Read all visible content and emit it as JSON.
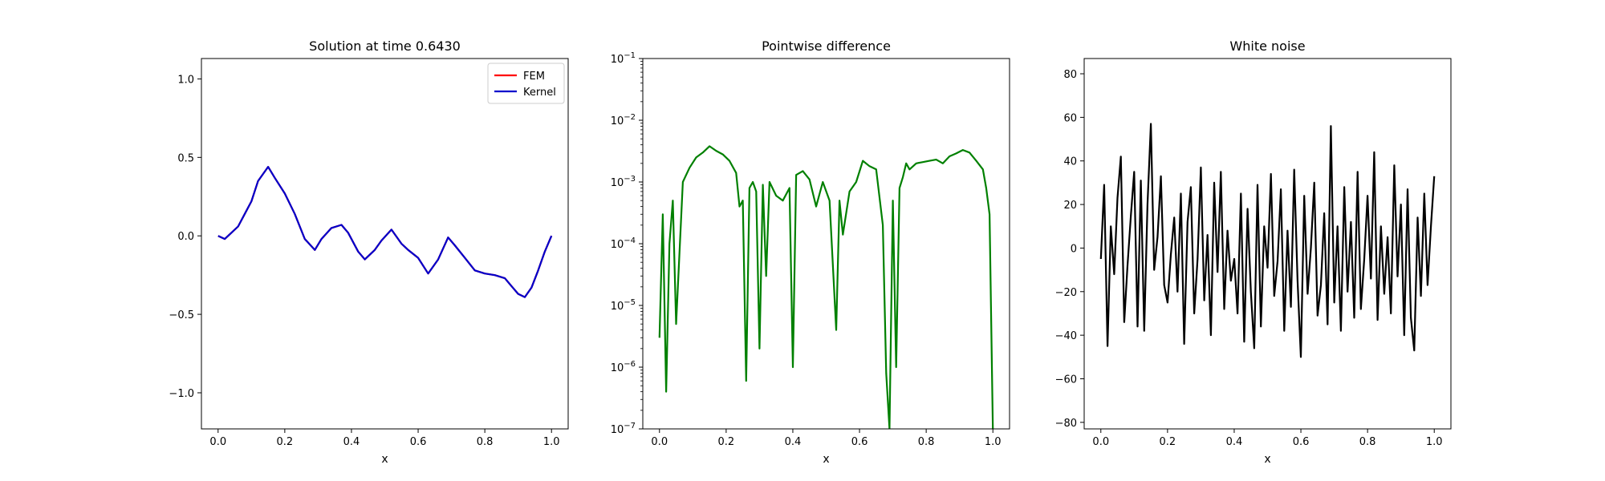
{
  "chart_data": [
    {
      "type": "line",
      "title": "Solution at time 0.6430",
      "xlabel": "x",
      "ylabel": "",
      "xlim": [
        -0.05,
        1.05
      ],
      "ylim": [
        -1.23,
        1.13
      ],
      "xticks": [
        0.0,
        0.2,
        0.4,
        0.6,
        0.8,
        1.0
      ],
      "xtick_labels": [
        "0.0",
        "0.2",
        "0.4",
        "0.6",
        "0.8",
        "1.0"
      ],
      "yticks": [
        1.0,
        0.5,
        0.0,
        -0.5,
        -1.0
      ],
      "ytick_labels": [
        "1.0",
        "0.5",
        "0.0",
        "−0.5",
        "−1.0"
      ],
      "legend": {
        "placement": "top-right",
        "entries": [
          {
            "label": "FEM",
            "color": "#ff0000"
          },
          {
            "label": "Kernel",
            "color": "#0000cc"
          }
        ]
      },
      "grid": false,
      "series": [
        {
          "name": "FEM",
          "color": "#ff0000",
          "x": [
            0.0,
            0.02,
            0.04,
            0.06,
            0.08,
            0.1,
            0.12,
            0.15,
            0.17,
            0.2,
            0.23,
            0.26,
            0.29,
            0.31,
            0.34,
            0.37,
            0.39,
            0.42,
            0.44,
            0.47,
            0.49,
            0.52,
            0.55,
            0.57,
            0.6,
            0.63,
            0.66,
            0.69,
            0.71,
            0.74,
            0.77,
            0.8,
            0.83,
            0.86,
            0.88,
            0.9,
            0.92,
            0.94,
            0.96,
            0.98,
            1.0
          ],
          "y": [
            0.0,
            -0.02,
            0.02,
            0.06,
            0.14,
            0.22,
            0.35,
            0.44,
            0.37,
            0.27,
            0.14,
            -0.02,
            -0.09,
            -0.02,
            0.05,
            0.07,
            0.02,
            -0.1,
            -0.15,
            -0.09,
            -0.03,
            0.04,
            -0.05,
            -0.09,
            -0.14,
            -0.24,
            -0.15,
            -0.01,
            -0.06,
            -0.14,
            -0.22,
            -0.24,
            -0.25,
            -0.27,
            -0.32,
            -0.37,
            -0.39,
            -0.33,
            -0.22,
            -0.1,
            0.0
          ]
        },
        {
          "name": "Kernel",
          "color": "#0000cc",
          "x": [
            0.0,
            0.02,
            0.04,
            0.06,
            0.08,
            0.1,
            0.12,
            0.15,
            0.17,
            0.2,
            0.23,
            0.26,
            0.29,
            0.31,
            0.34,
            0.37,
            0.39,
            0.42,
            0.44,
            0.47,
            0.49,
            0.52,
            0.55,
            0.57,
            0.6,
            0.63,
            0.66,
            0.69,
            0.71,
            0.74,
            0.77,
            0.8,
            0.83,
            0.86,
            0.88,
            0.9,
            0.92,
            0.94,
            0.96,
            0.98,
            1.0
          ],
          "y": [
            0.0,
            -0.02,
            0.02,
            0.06,
            0.14,
            0.22,
            0.35,
            0.44,
            0.37,
            0.27,
            0.14,
            -0.02,
            -0.09,
            -0.02,
            0.05,
            0.07,
            0.02,
            -0.1,
            -0.15,
            -0.09,
            -0.03,
            0.04,
            -0.05,
            -0.09,
            -0.14,
            -0.24,
            -0.15,
            -0.01,
            -0.06,
            -0.14,
            -0.22,
            -0.24,
            -0.25,
            -0.27,
            -0.32,
            -0.37,
            -0.39,
            -0.33,
            -0.22,
            -0.1,
            0.0
          ]
        }
      ]
    },
    {
      "type": "line",
      "title": "Pointwise difference",
      "xlabel": "x",
      "ylabel": "",
      "yscale": "log",
      "xlim": [
        -0.05,
        1.05
      ],
      "ylim": [
        1e-07,
        0.1
      ],
      "xticks": [
        0.0,
        0.2,
        0.4,
        0.6,
        0.8,
        1.0
      ],
      "xtick_labels": [
        "0.0",
        "0.2",
        "0.4",
        "0.6",
        "0.8",
        "1.0"
      ],
      "yticks": [
        0.1,
        0.01,
        0.001,
        0.0001,
        1e-05,
        1e-06,
        1e-07
      ],
      "ytick_labels": [
        {
          "base": "10",
          "exp": "−1"
        },
        {
          "base": "10",
          "exp": "−2"
        },
        {
          "base": "10",
          "exp": "−3"
        },
        {
          "base": "10",
          "exp": "−4"
        },
        {
          "base": "10",
          "exp": "−5"
        },
        {
          "base": "10",
          "exp": "−6"
        },
        {
          "base": "10",
          "exp": "−7"
        }
      ],
      "grid": false,
      "series": [
        {
          "color": "#008000",
          "x": [
            0.0,
            0.01,
            0.02,
            0.03,
            0.04,
            0.05,
            0.07,
            0.09,
            0.11,
            0.13,
            0.15,
            0.17,
            0.19,
            0.21,
            0.23,
            0.24,
            0.25,
            0.26,
            0.27,
            0.28,
            0.29,
            0.3,
            0.31,
            0.32,
            0.33,
            0.35,
            0.37,
            0.39,
            0.4,
            0.41,
            0.43,
            0.45,
            0.47,
            0.49,
            0.51,
            0.53,
            0.54,
            0.55,
            0.57,
            0.59,
            0.61,
            0.63,
            0.65,
            0.67,
            0.68,
            0.69,
            0.7,
            0.71,
            0.72,
            0.73,
            0.74,
            0.75,
            0.77,
            0.79,
            0.81,
            0.83,
            0.85,
            0.87,
            0.89,
            0.91,
            0.93,
            0.95,
            0.97,
            0.98,
            0.99,
            1.0
          ],
          "y": [
            3e-06,
            0.0003,
            4e-07,
            0.0001,
            0.0005,
            5e-06,
            0.001,
            0.0017,
            0.0025,
            0.003,
            0.0038,
            0.0032,
            0.0028,
            0.0022,
            0.0014,
            0.0004,
            0.0005,
            6e-07,
            0.0008,
            0.001,
            0.0007,
            2e-06,
            0.0009,
            3e-05,
            0.001,
            0.0006,
            0.0005,
            0.0008,
            1e-06,
            0.0013,
            0.0015,
            0.0011,
            0.0004,
            0.001,
            0.0005,
            4e-06,
            0.0005,
            0.00014,
            0.0007,
            0.001,
            0.0022,
            0.0018,
            0.0016,
            0.0002,
            8e-07,
            1e-07,
            0.0005,
            1e-06,
            0.0008,
            0.0012,
            0.002,
            0.0016,
            0.002,
            0.0021,
            0.0022,
            0.0023,
            0.002,
            0.0026,
            0.0029,
            0.0033,
            0.003,
            0.0022,
            0.0016,
            0.0008,
            0.0003,
            1e-07
          ]
        }
      ]
    },
    {
      "type": "line",
      "title": "White noise",
      "xlabel": "x",
      "ylabel": "",
      "xlim": [
        -0.05,
        1.05
      ],
      "ylim": [
        -83,
        87
      ],
      "xticks": [
        0.0,
        0.2,
        0.4,
        0.6,
        0.8,
        1.0
      ],
      "xtick_labels": [
        "0.0",
        "0.2",
        "0.4",
        "0.6",
        "0.8",
        "1.0"
      ],
      "yticks": [
        80,
        60,
        40,
        20,
        0,
        -20,
        -40,
        -60,
        -80
      ],
      "ytick_labels": [
        "80",
        "60",
        "40",
        "20",
        "0",
        "−20",
        "−40",
        "−60",
        "−80"
      ],
      "grid": false,
      "series": [
        {
          "color": "#000000",
          "x": [
            0.0,
            0.01,
            0.02,
            0.03,
            0.04,
            0.05,
            0.06,
            0.07,
            0.08,
            0.09,
            0.1,
            0.11,
            0.12,
            0.13,
            0.14,
            0.15,
            0.16,
            0.17,
            0.18,
            0.19,
            0.2,
            0.21,
            0.22,
            0.23,
            0.24,
            0.25,
            0.26,
            0.27,
            0.28,
            0.29,
            0.3,
            0.31,
            0.32,
            0.33,
            0.34,
            0.35,
            0.36,
            0.37,
            0.38,
            0.39,
            0.4,
            0.41,
            0.42,
            0.43,
            0.44,
            0.45,
            0.46,
            0.47,
            0.48,
            0.49,
            0.5,
            0.51,
            0.52,
            0.53,
            0.54,
            0.55,
            0.56,
            0.57,
            0.58,
            0.59,
            0.6,
            0.61,
            0.62,
            0.63,
            0.64,
            0.65,
            0.66,
            0.67,
            0.68,
            0.69,
            0.7,
            0.71,
            0.72,
            0.73,
            0.74,
            0.75,
            0.76,
            0.77,
            0.78,
            0.79,
            0.8,
            0.81,
            0.82,
            0.83,
            0.84,
            0.85,
            0.86,
            0.87,
            0.88,
            0.89,
            0.9,
            0.91,
            0.92,
            0.93,
            0.94,
            0.95,
            0.96,
            0.97,
            0.98,
            0.99,
            1.0
          ],
          "y": [
            -5,
            29,
            -45,
            10,
            -12,
            23,
            42,
            -34,
            -8,
            15,
            35,
            -36,
            31,
            -38,
            20,
            57,
            -10,
            5,
            33,
            -17,
            -25,
            -3,
            14,
            -20,
            25,
            -44,
            12,
            28,
            -30,
            -5,
            37,
            -24,
            6,
            -40,
            30,
            -11,
            35,
            -28,
            8,
            -15,
            -5,
            -30,
            25,
            -43,
            18,
            -20,
            -46,
            29,
            -36,
            10,
            -9,
            34,
            -22,
            -6,
            27,
            -38,
            8,
            -27,
            36,
            -15,
            -50,
            24,
            -21,
            0,
            30,
            -31,
            -17,
            16,
            -35,
            56,
            -25,
            10,
            -38,
            28,
            -20,
            12,
            -32,
            35,
            -28,
            -5,
            24,
            -14,
            44,
            -33,
            10,
            -21,
            5,
            -30,
            38,
            -13,
            20,
            -40,
            27,
            -32,
            -47,
            14,
            -22,
            25,
            -17,
            10,
            33
          ]
        }
      ]
    }
  ]
}
